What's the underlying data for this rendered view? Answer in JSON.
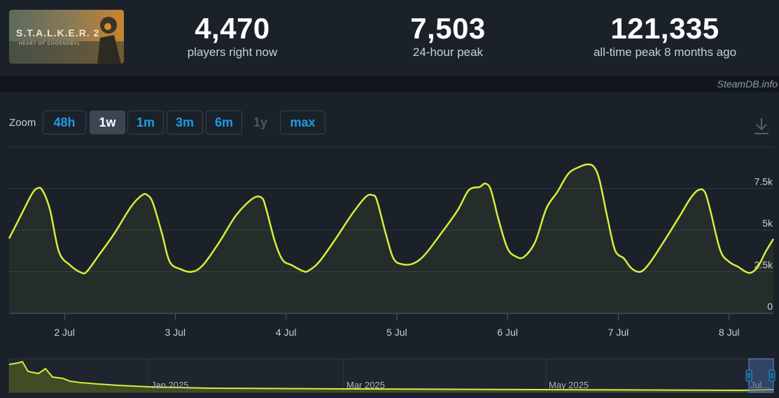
{
  "game": {
    "title": "S.T.A.L.K.E.R. 2",
    "subtitle": "HEART OF CHORNOBYL"
  },
  "stats": [
    {
      "value": "4,470",
      "label": "players right now"
    },
    {
      "value": "7,503",
      "label": "24-hour peak"
    },
    {
      "value": "121,335",
      "label": "all-time peak 8 months ago"
    }
  ],
  "credit": "SteamDB.info",
  "zoom": {
    "label": "Zoom",
    "buttons": [
      {
        "label": "48h",
        "state": "normal"
      },
      {
        "label": "1w",
        "state": "active"
      },
      {
        "label": "1m",
        "state": "normal"
      },
      {
        "label": "3m",
        "state": "normal"
      },
      {
        "label": "6m",
        "state": "normal"
      },
      {
        "label": "1y",
        "state": "disabled"
      },
      {
        "label": "max",
        "state": "normal"
      }
    ]
  },
  "icons": {
    "download": "download-icon"
  },
  "colors": {
    "line": "#d2f03c",
    "background": "#1b2129",
    "grid": "#2e3843",
    "accent": "#1e9be6"
  },
  "chart_data": {
    "type": "area",
    "ylim": [
      0,
      10000
    ],
    "yticks": [
      {
        "value": 0,
        "label": "0"
      },
      {
        "value": 2500,
        "label": "2.5k"
      },
      {
        "value": 5000,
        "label": "5k"
      },
      {
        "value": 7500,
        "label": "7.5k"
      }
    ],
    "xlim": [
      1.5,
      8.4
    ],
    "xticks": [
      {
        "value": 2,
        "label": "2 Jul"
      },
      {
        "value": 3,
        "label": "3 Jul"
      },
      {
        "value": 4,
        "label": "4 Jul"
      },
      {
        "value": 5,
        "label": "5 Jul"
      },
      {
        "value": 6,
        "label": "6 Jul"
      },
      {
        "value": 7,
        "label": "7 Jul"
      },
      {
        "value": 8,
        "label": "8 Jul"
      }
    ],
    "series": [
      {
        "points": [
          [
            1.5,
            4500
          ],
          [
            1.6,
            5800
          ],
          [
            1.7,
            7100
          ],
          [
            1.75,
            7500
          ],
          [
            1.8,
            7400
          ],
          [
            1.87,
            6200
          ],
          [
            1.95,
            3700
          ],
          [
            2.05,
            2900
          ],
          [
            2.15,
            2450
          ],
          [
            2.2,
            2500
          ],
          [
            2.3,
            3400
          ],
          [
            2.45,
            4800
          ],
          [
            2.6,
            6400
          ],
          [
            2.7,
            7100
          ],
          [
            2.75,
            7100
          ],
          [
            2.8,
            6600
          ],
          [
            2.88,
            4800
          ],
          [
            2.95,
            3100
          ],
          [
            3.05,
            2650
          ],
          [
            3.15,
            2500
          ],
          [
            3.25,
            2900
          ],
          [
            3.4,
            4300
          ],
          [
            3.55,
            5900
          ],
          [
            3.7,
            6900
          ],
          [
            3.78,
            6950
          ],
          [
            3.82,
            6300
          ],
          [
            3.9,
            4300
          ],
          [
            3.97,
            3200
          ],
          [
            4.05,
            2900
          ],
          [
            4.15,
            2550
          ],
          [
            4.2,
            2550
          ],
          [
            4.3,
            3100
          ],
          [
            4.45,
            4500
          ],
          [
            4.6,
            6000
          ],
          [
            4.72,
            7000
          ],
          [
            4.78,
            7100
          ],
          [
            4.82,
            6800
          ],
          [
            4.9,
            4800
          ],
          [
            4.97,
            3300
          ],
          [
            5.05,
            2950
          ],
          [
            5.15,
            3000
          ],
          [
            5.25,
            3500
          ],
          [
            5.4,
            4800
          ],
          [
            5.55,
            6200
          ],
          [
            5.65,
            7400
          ],
          [
            5.75,
            7600
          ],
          [
            5.8,
            7800
          ],
          [
            5.85,
            7400
          ],
          [
            5.92,
            5600
          ],
          [
            6.0,
            3900
          ],
          [
            6.08,
            3400
          ],
          [
            6.15,
            3400
          ],
          [
            6.25,
            4300
          ],
          [
            6.35,
            6300
          ],
          [
            6.45,
            7300
          ],
          [
            6.55,
            8400
          ],
          [
            6.65,
            8800
          ],
          [
            6.72,
            8950
          ],
          [
            6.78,
            8800
          ],
          [
            6.83,
            8000
          ],
          [
            6.9,
            5800
          ],
          [
            6.97,
            3800
          ],
          [
            7.05,
            3300
          ],
          [
            7.12,
            2700
          ],
          [
            7.2,
            2500
          ],
          [
            7.28,
            3000
          ],
          [
            7.4,
            4200
          ],
          [
            7.55,
            5800
          ],
          [
            7.65,
            6900
          ],
          [
            7.72,
            7400
          ],
          [
            7.78,
            7300
          ],
          [
            7.83,
            6200
          ],
          [
            7.92,
            3800
          ],
          [
            8.0,
            3100
          ],
          [
            8.08,
            2800
          ],
          [
            8.15,
            2500
          ],
          [
            8.2,
            2450
          ],
          [
            8.26,
            2800
          ],
          [
            8.33,
            3700
          ],
          [
            8.4,
            4470
          ]
        ]
      }
    ],
    "navigator": {
      "labels": [
        "Jan 2025",
        "Mar 2025",
        "May 2025",
        "Jul..."
      ]
    }
  }
}
